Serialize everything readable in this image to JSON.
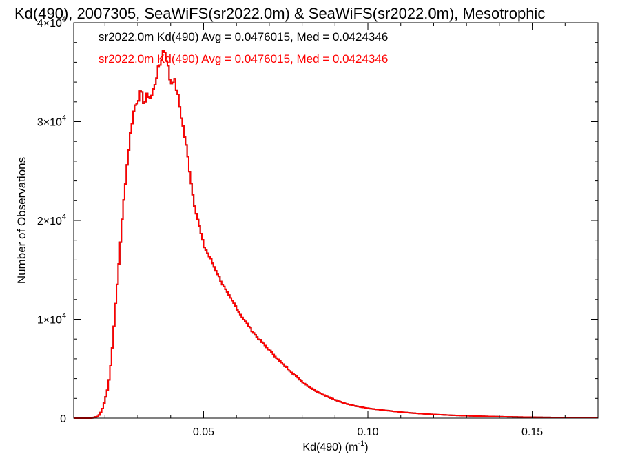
{
  "chart_data": {
    "type": "histogram-step",
    "title": "Kd(490), 2007305, SeaWiFS(sr2022.0m) & SeaWiFS(sr2022.0m), Mesotrophic",
    "xlabel": "Kd(490) (m",
    "xlabel_exp": "-1",
    "xlabel_close": ")",
    "ylabel": "Number of Observations",
    "xlim": [
      0.0105,
      0.17
    ],
    "ylim": [
      0,
      40000
    ],
    "x_ticks": [
      {
        "value": 0.05,
        "label": "0.05"
      },
      {
        "value": 0.1,
        "label": "0.10"
      },
      {
        "value": 0.15,
        "label": "0.15"
      }
    ],
    "y_ticks": [
      {
        "value": 0,
        "label": "0",
        "exp": ""
      },
      {
        "value": 10000,
        "label": "1×10",
        "exp": "4"
      },
      {
        "value": 20000,
        "label": "2×10",
        "exp": "4"
      },
      {
        "value": 30000,
        "label": "3×10",
        "exp": "4"
      },
      {
        "value": 40000,
        "label": "4×10",
        "exp": "4"
      }
    ],
    "legend_placement": "top-left",
    "series": [
      {
        "name": "sr2022.0m Kd(490) Avg = 0.0476015, Med = 0.0424346",
        "color": "#000000"
      },
      {
        "name": "sr2022.0m Kd(490) Avg = 0.0476015, Med = 0.0424346",
        "color": "#ff0000"
      }
    ],
    "bin_width": 0.0005,
    "histogram": [
      [
        0.0105,
        0
      ],
      [
        0.016,
        0
      ],
      [
        0.018,
        200
      ],
      [
        0.019,
        700
      ],
      [
        0.02,
        1800
      ],
      [
        0.021,
        3200
      ],
      [
        0.022,
        6000
      ],
      [
        0.023,
        10500
      ],
      [
        0.024,
        14500
      ],
      [
        0.025,
        19000
      ],
      [
        0.026,
        23000
      ],
      [
        0.027,
        26500
      ],
      [
        0.028,
        29500
      ],
      [
        0.029,
        31500
      ],
      [
        0.03,
        32200
      ],
      [
        0.031,
        33000
      ],
      [
        0.032,
        31800
      ],
      [
        0.033,
        32800
      ],
      [
        0.034,
        32300
      ],
      [
        0.035,
        33500
      ],
      [
        0.036,
        35000
      ],
      [
        0.037,
        36000
      ],
      [
        0.038,
        37500
      ],
      [
        0.039,
        36000
      ],
      [
        0.04,
        33800
      ],
      [
        0.041,
        34400
      ],
      [
        0.042,
        33000
      ],
      [
        0.043,
        31000
      ],
      [
        0.044,
        29000
      ],
      [
        0.045,
        27000
      ],
      [
        0.046,
        24500
      ],
      [
        0.047,
        22000
      ],
      [
        0.048,
        20500
      ],
      [
        0.049,
        19000
      ],
      [
        0.05,
        17500
      ],
      [
        0.052,
        16200
      ],
      [
        0.054,
        14800
      ],
      [
        0.056,
        13400
      ],
      [
        0.058,
        12200
      ],
      [
        0.06,
        11200
      ],
      [
        0.062,
        10100
      ],
      [
        0.064,
        9200
      ],
      [
        0.066,
        8300
      ],
      [
        0.068,
        7600
      ],
      [
        0.07,
        6900
      ],
      [
        0.072,
        6200
      ],
      [
        0.074,
        5500
      ],
      [
        0.076,
        4900
      ],
      [
        0.078,
        4300
      ],
      [
        0.08,
        3700
      ],
      [
        0.082,
        3200
      ],
      [
        0.084,
        2800
      ],
      [
        0.086,
        2450
      ],
      [
        0.088,
        2150
      ],
      [
        0.09,
        1850
      ],
      [
        0.093,
        1500
      ],
      [
        0.096,
        1250
      ],
      [
        0.1,
        1000
      ],
      [
        0.105,
        800
      ],
      [
        0.11,
        620
      ],
      [
        0.115,
        480
      ],
      [
        0.12,
        380
      ],
      [
        0.125,
        300
      ],
      [
        0.13,
        240
      ],
      [
        0.135,
        190
      ],
      [
        0.14,
        150
      ],
      [
        0.145,
        120
      ],
      [
        0.15,
        95
      ],
      [
        0.155,
        75
      ],
      [
        0.16,
        60
      ],
      [
        0.165,
        45
      ],
      [
        0.17,
        35
      ]
    ]
  }
}
